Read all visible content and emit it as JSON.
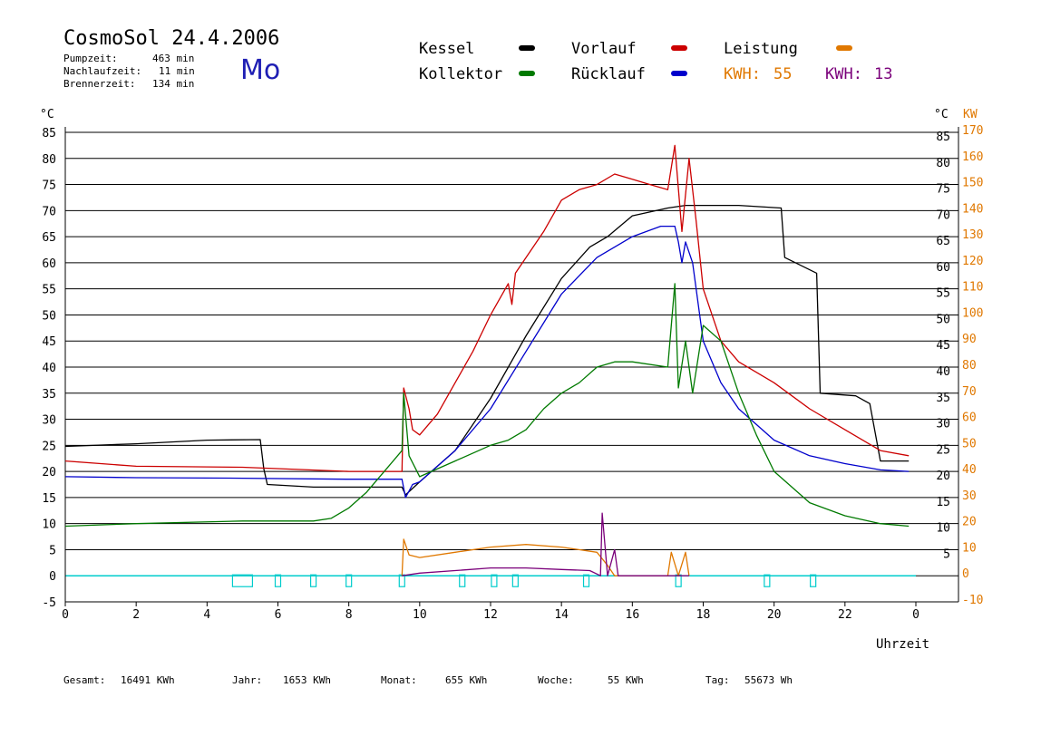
{
  "header": {
    "title": "CosmoSol 24.4.2006",
    "day": "Mo",
    "stats": [
      {
        "label": "Pumpzeit:",
        "value": "463 min"
      },
      {
        "label": "Nachlaufzeit:",
        "value": "11 min"
      },
      {
        "label": "Brennerzeit:",
        "value": "134 min"
      }
    ]
  },
  "legend": {
    "items": [
      {
        "name": "Kessel",
        "color": "#000000"
      },
      {
        "name": "Kollektor",
        "color": "#007a00"
      },
      {
        "name": "Vorlauf",
        "color": "#cc0000"
      },
      {
        "name": "Rücklauf",
        "color": "#0000cc"
      },
      {
        "name": "Leistung",
        "color": "#e07800"
      }
    ],
    "kwh_orange": {
      "label": "KWH:",
      "value": "55",
      "color": "#e07800"
    },
    "kwh_purple": {
      "label": "KWH:",
      "value": "13",
      "color": "#7a007a"
    }
  },
  "footer": {
    "items": [
      {
        "label": "Gesamt:",
        "value": "16491 KWh"
      },
      {
        "label": "Jahr:",
        "value": "1653 KWh"
      },
      {
        "label": "Monat:",
        "value": "655 KWh"
      },
      {
        "label": "Woche:",
        "value": "55 KWh"
      },
      {
        "label": "Tag:",
        "value": "55673 Wh"
      }
    ]
  },
  "chart_data": {
    "type": "line",
    "xlabel": "Uhrzeit",
    "ylabel_left": "°C",
    "ylabel_right_temp": "°C",
    "ylabel_right_power": "KW",
    "xlim": [
      0,
      24
    ],
    "ylim": [
      -5,
      85
    ],
    "x_ticks": [
      "0",
      "2",
      "4",
      "6",
      "8",
      "10",
      "12",
      "14",
      "16",
      "18",
      "20",
      "22",
      "0"
    ],
    "y_ticks_left": [
      -5,
      0,
      5,
      10,
      15,
      20,
      25,
      30,
      35,
      40,
      45,
      50,
      55,
      60,
      65,
      70,
      75,
      80,
      85
    ],
    "y_ticks_right": [
      5,
      10,
      15,
      20,
      25,
      30,
      35,
      40,
      45,
      50,
      55,
      60,
      65,
      70,
      75,
      80,
      85
    ],
    "y_ticks_kw": [
      -10,
      0,
      10,
      20,
      30,
      40,
      50,
      60,
      70,
      80,
      90,
      100,
      110,
      120,
      130,
      140,
      150,
      160,
      170
    ],
    "grid": true,
    "series": [
      {
        "name": "Kessel",
        "color": "#000000",
        "points": [
          [
            0,
            24.8
          ],
          [
            2,
            25.3
          ],
          [
            4,
            26
          ],
          [
            5.5,
            26.1
          ],
          [
            5.6,
            20.5
          ],
          [
            5.7,
            17.5
          ],
          [
            7,
            17
          ],
          [
            9.5,
            17
          ],
          [
            9.6,
            15.5
          ],
          [
            10,
            18
          ],
          [
            11,
            24
          ],
          [
            12,
            34
          ],
          [
            13,
            46
          ],
          [
            14,
            57
          ],
          [
            14.8,
            63
          ],
          [
            15.3,
            65
          ],
          [
            16,
            69
          ],
          [
            17,
            70.5
          ],
          [
            17.5,
            71
          ],
          [
            18,
            71
          ],
          [
            19,
            71
          ],
          [
            20.2,
            70.5
          ],
          [
            20.3,
            61
          ],
          [
            21.2,
            58
          ],
          [
            21.3,
            35
          ],
          [
            22.3,
            34.5
          ],
          [
            22.7,
            33
          ],
          [
            23,
            22
          ],
          [
            23.8,
            22
          ]
        ]
      },
      {
        "name": "Vorlauf",
        "color": "#cc0000",
        "points": [
          [
            0,
            22
          ],
          [
            2,
            21
          ],
          [
            5,
            20.8
          ],
          [
            8,
            20
          ],
          [
            9.5,
            20
          ],
          [
            9.55,
            36
          ],
          [
            9.7,
            32
          ],
          [
            9.8,
            28
          ],
          [
            10,
            27
          ],
          [
            10.5,
            31
          ],
          [
            11,
            37
          ],
          [
            11.5,
            43
          ],
          [
            12,
            50
          ],
          [
            12.5,
            56
          ],
          [
            12.6,
            52
          ],
          [
            12.7,
            58
          ],
          [
            13,
            61
          ],
          [
            13.5,
            66
          ],
          [
            14,
            72
          ],
          [
            14.5,
            74
          ],
          [
            15,
            75
          ],
          [
            15.5,
            77
          ],
          [
            16,
            76
          ],
          [
            16.5,
            75
          ],
          [
            17,
            74
          ],
          [
            17.2,
            82.5
          ],
          [
            17.4,
            66
          ],
          [
            17.6,
            80
          ],
          [
            17.8,
            68
          ],
          [
            18,
            55
          ],
          [
            18.5,
            45
          ],
          [
            19,
            41
          ],
          [
            20,
            37
          ],
          [
            21,
            32
          ],
          [
            22,
            28
          ],
          [
            23,
            24
          ],
          [
            23.8,
            23
          ]
        ]
      },
      {
        "name": "Rücklauf",
        "color": "#0000cc",
        "points": [
          [
            0,
            19
          ],
          [
            2,
            18.8
          ],
          [
            5,
            18.7
          ],
          [
            8,
            18.5
          ],
          [
            9.5,
            18.5
          ],
          [
            9.6,
            15
          ],
          [
            9.8,
            17.5
          ],
          [
            10,
            18
          ],
          [
            11,
            24
          ],
          [
            12,
            32
          ],
          [
            13,
            43
          ],
          [
            14,
            54
          ],
          [
            15,
            61
          ],
          [
            16,
            65
          ],
          [
            16.8,
            67
          ],
          [
            17.2,
            67
          ],
          [
            17.3,
            64
          ],
          [
            17.4,
            60
          ],
          [
            17.5,
            64
          ],
          [
            17.7,
            60
          ],
          [
            18,
            45
          ],
          [
            18.5,
            37
          ],
          [
            19,
            32
          ],
          [
            20,
            26
          ],
          [
            21,
            23
          ],
          [
            22,
            21.5
          ],
          [
            23,
            20.3
          ],
          [
            23.8,
            20
          ]
        ]
      },
      {
        "name": "Kollektor",
        "color": "#007a00",
        "points": [
          [
            0,
            9.5
          ],
          [
            2,
            10
          ],
          [
            5,
            10.5
          ],
          [
            7,
            10.5
          ],
          [
            7.5,
            11
          ],
          [
            8,
            13
          ],
          [
            8.5,
            16
          ],
          [
            9,
            20
          ],
          [
            9.5,
            24
          ],
          [
            9.55,
            35
          ],
          [
            9.7,
            23
          ],
          [
            10,
            19
          ],
          [
            11,
            22
          ],
          [
            12,
            25
          ],
          [
            12.5,
            26
          ],
          [
            13,
            28
          ],
          [
            13.5,
            32
          ],
          [
            14,
            35
          ],
          [
            14.5,
            37
          ],
          [
            15,
            40
          ],
          [
            15.5,
            41
          ],
          [
            16,
            41
          ],
          [
            17,
            40
          ],
          [
            17.2,
            56
          ],
          [
            17.3,
            36
          ],
          [
            17.5,
            45
          ],
          [
            17.7,
            35
          ],
          [
            18,
            48
          ],
          [
            18.5,
            45
          ],
          [
            19,
            35
          ],
          [
            19.5,
            27
          ],
          [
            20,
            20
          ],
          [
            21,
            14
          ],
          [
            22,
            11.5
          ],
          [
            23,
            10
          ],
          [
            23.8,
            9.5
          ]
        ]
      },
      {
        "name": "Leistung",
        "color": "#e07800",
        "points": [
          [
            9.5,
            0
          ],
          [
            9.55,
            7
          ],
          [
            9.7,
            4
          ],
          [
            10,
            3.5
          ],
          [
            11,
            4.5
          ],
          [
            12,
            5.5
          ],
          [
            13,
            6
          ],
          [
            14,
            5.5
          ],
          [
            15,
            4.5
          ],
          [
            15.3,
            2
          ],
          [
            15.5,
            0
          ],
          [
            16,
            0
          ],
          [
            17,
            0
          ],
          [
            17.1,
            4.5
          ],
          [
            17.3,
            0
          ],
          [
            17.5,
            4.5
          ],
          [
            17.6,
            0
          ]
        ]
      },
      {
        "name": "Leistung2",
        "color": "#7a007a",
        "points": [
          [
            9.5,
            0
          ],
          [
            10,
            0.5
          ],
          [
            11,
            1
          ],
          [
            12,
            1.5
          ],
          [
            13,
            1.5
          ],
          [
            14,
            1.2
          ],
          [
            14.8,
            1
          ],
          [
            15.1,
            0
          ],
          [
            15.15,
            12
          ],
          [
            15.3,
            0
          ],
          [
            15.5,
            5
          ],
          [
            15.6,
            0
          ],
          [
            17.6,
            0
          ]
        ]
      }
    ],
    "pump_marks": [
      5,
      6,
      7,
      8,
      9.5,
      11.2,
      12.1,
      12.7,
      14.7,
      17.3,
      19.8,
      21.1
    ]
  }
}
